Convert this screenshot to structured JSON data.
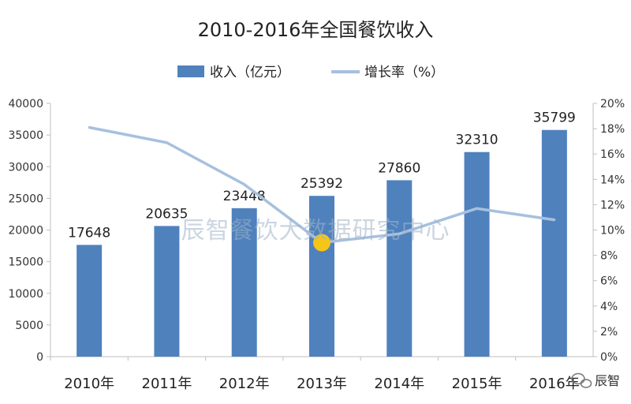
{
  "chart_data": {
    "type": "bar",
    "title": "2010-2016年全国餐饮收入",
    "categories": [
      "2010年",
      "2011年",
      "2012年",
      "2013年",
      "2014年",
      "2015年",
      "2016年"
    ],
    "series": [
      {
        "name": "收入（亿元）",
        "type": "bar",
        "axis": "left",
        "values": [
          17648,
          20635,
          23448,
          25392,
          27860,
          32310,
          35799
        ],
        "color": "#4f81bd"
      },
      {
        "name": "增长率（%）",
        "type": "line",
        "axis": "right",
        "values": [
          18.1,
          16.9,
          13.6,
          9.0,
          9.7,
          11.7,
          10.8
        ],
        "color": "#a7c0de"
      }
    ],
    "y_left": {
      "min": 0,
      "max": 40000,
      "step": 5000,
      "ticks": [
        "0",
        "5000",
        "10000",
        "15000",
        "20000",
        "25000",
        "30000",
        "35000",
        "40000"
      ]
    },
    "y_right": {
      "min": 0,
      "max": 20,
      "step": 2,
      "ticks": [
        "0%",
        "2%",
        "4%",
        "6%",
        "8%",
        "10%",
        "12%",
        "14%",
        "16%",
        "18%",
        "20%"
      ]
    },
    "legend_position": "top-center",
    "grid": false,
    "highlight": {
      "index": 3,
      "color": "#f5c518"
    }
  },
  "watermark": "辰智餐饮大数据研究中心",
  "brand": "辰智"
}
